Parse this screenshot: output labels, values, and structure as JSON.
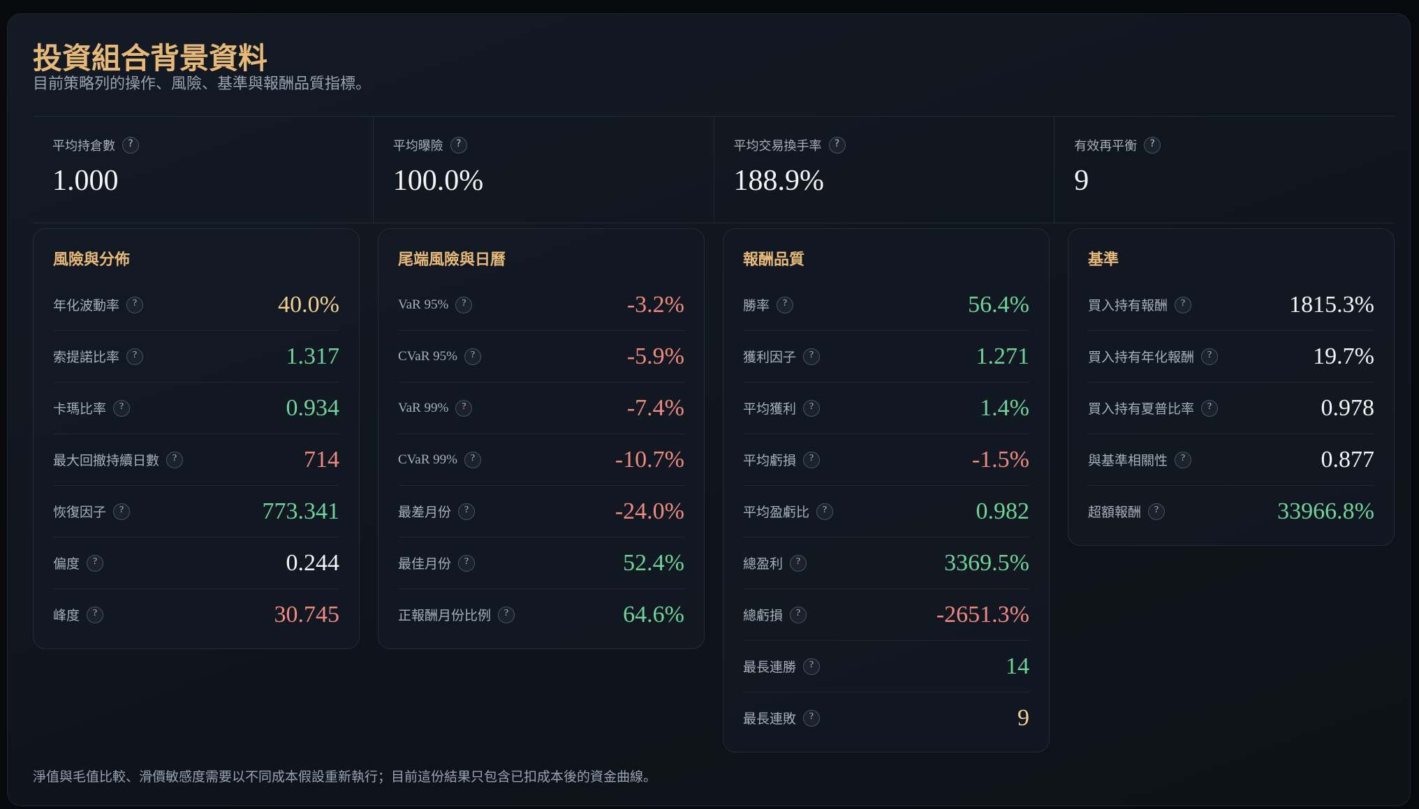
{
  "header": {
    "title": "投資組合背景資料",
    "subtitle": "目前策略列的操作、風險、基準與報酬品質指標。"
  },
  "summary": [
    {
      "label": "平均持倉數",
      "value": "1.000"
    },
    {
      "label": "平均曝險",
      "value": "100.0%"
    },
    {
      "label": "平均交易換手率",
      "value": "188.9%"
    },
    {
      "label": "有效再平衡",
      "value": "9"
    }
  ],
  "panels": [
    {
      "title": "風險與分佈",
      "rows": [
        {
          "label": "年化波動率",
          "value": "40.0%"
        },
        {
          "label": "索提諾比率",
          "value": "1.317"
        },
        {
          "label": "卡瑪比率",
          "value": "0.934"
        },
        {
          "label": "最大回撤持續日數",
          "value": "714"
        },
        {
          "label": "恢復因子",
          "value": "773.341"
        },
        {
          "label": "偏度",
          "value": "0.244"
        },
        {
          "label": "峰度",
          "value": "30.745"
        }
      ]
    },
    {
      "title": "尾端風險與日曆",
      "rows": [
        {
          "label": "VaR 95%",
          "value": "-3.2%"
        },
        {
          "label": "CVaR 95%",
          "value": "-5.9%"
        },
        {
          "label": "VaR 99%",
          "value": "-7.4%"
        },
        {
          "label": "CVaR 99%",
          "value": "-10.7%"
        },
        {
          "label": "最差月份",
          "value": "-24.0%"
        },
        {
          "label": "最佳月份",
          "value": "52.4%"
        },
        {
          "label": "正報酬月份比例",
          "value": "64.6%"
        }
      ]
    },
    {
      "title": "報酬品質",
      "rows": [
        {
          "label": "勝率",
          "value": "56.4%"
        },
        {
          "label": "獲利因子",
          "value": "1.271"
        },
        {
          "label": "平均獲利",
          "value": "1.4%"
        },
        {
          "label": "平均虧損",
          "value": "-1.5%"
        },
        {
          "label": "平均盈虧比",
          "value": "0.982"
        },
        {
          "label": "總盈利",
          "value": "3369.5%"
        },
        {
          "label": "總虧損",
          "value": "-2651.3%"
        },
        {
          "label": "最長連勝",
          "value": "14"
        },
        {
          "label": "最長連敗",
          "value": "9"
        }
      ]
    },
    {
      "title": "基準",
      "rows": [
        {
          "label": "買入持有報酬",
          "value": "1815.3%"
        },
        {
          "label": "買入持有年化報酬",
          "value": "19.7%"
        },
        {
          "label": "買入持有夏普比率",
          "value": "0.978"
        },
        {
          "label": "與基準相關性",
          "value": "0.877"
        },
        {
          "label": "超額報酬",
          "value": "33966.8%"
        }
      ]
    }
  ],
  "footnote": "淨值與毛值比較、滑價敏感度需要以不同成本假設重新執行；目前這份結果只包含已扣成本後的資金曲線。"
}
